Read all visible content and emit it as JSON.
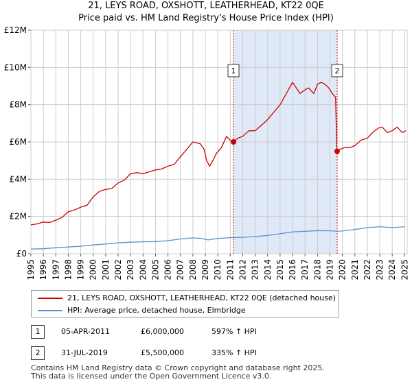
{
  "title_line1": "21, LEYS ROAD, OXSHOTT, LEATHERHEAD, KT22 0QE",
  "title_line2": "Price paid vs. HM Land Registry's House Price Index (HPI)",
  "colors": {
    "property": "#cc0000",
    "hpi": "#5b8fcf",
    "shade": "#dfe9f7",
    "marker_line": "#cc0000"
  },
  "chart_data": {
    "type": "line",
    "x_ticks": [
      "1995",
      "1996",
      "1997",
      "1998",
      "1999",
      "2000",
      "2001",
      "2002",
      "2003",
      "2004",
      "2005",
      "2006",
      "2007",
      "2008",
      "2009",
      "2010",
      "2011",
      "2012",
      "2013",
      "2014",
      "2015",
      "2016",
      "2017",
      "2018",
      "2019",
      "2020",
      "2021",
      "2022",
      "2023",
      "2024",
      "2025"
    ],
    "y_tick_labels": [
      "£0",
      "£2M",
      "£4M",
      "£6M",
      "£8M",
      "£10M",
      "£12M"
    ],
    "y_tick_values": [
      0,
      2000000,
      4000000,
      6000000,
      8000000,
      10000000,
      12000000
    ],
    "xlim": [
      1995,
      2025.2
    ],
    "ylim": [
      0,
      12000000
    ],
    "series": [
      {
        "name": "21, LEYS ROAD, OXSHOTT, LEATHERHEAD, KT22 0QE (detached house)",
        "color": "#cc0000",
        "points": [
          [
            1995.0,
            1.55
          ],
          [
            1995.5,
            1.6
          ],
          [
            1996.0,
            1.7
          ],
          [
            1996.5,
            1.68
          ],
          [
            1997.0,
            1.8
          ],
          [
            1997.5,
            1.95
          ],
          [
            1998.0,
            2.25
          ],
          [
            1998.5,
            2.35
          ],
          [
            1999.0,
            2.5
          ],
          [
            1999.5,
            2.6
          ],
          [
            2000.0,
            3.05
          ],
          [
            2000.5,
            3.35
          ],
          [
            2001.0,
            3.45
          ],
          [
            2001.5,
            3.5
          ],
          [
            2002.0,
            3.8
          ],
          [
            2002.5,
            3.95
          ],
          [
            2003.0,
            4.3
          ],
          [
            2003.5,
            4.35
          ],
          [
            2004.0,
            4.3
          ],
          [
            2004.5,
            4.4
          ],
          [
            2005.0,
            4.5
          ],
          [
            2005.5,
            4.55
          ],
          [
            2006.0,
            4.7
          ],
          [
            2006.5,
            4.8
          ],
          [
            2007.0,
            5.2
          ],
          [
            2007.5,
            5.6
          ],
          [
            2008.0,
            6.0
          ],
          [
            2008.3,
            5.95
          ],
          [
            2008.6,
            5.9
          ],
          [
            2008.9,
            5.6
          ],
          [
            2009.1,
            5.0
          ],
          [
            2009.35,
            4.7
          ],
          [
            2009.6,
            5.0
          ],
          [
            2009.9,
            5.4
          ],
          [
            2010.3,
            5.7
          ],
          [
            2010.7,
            6.3
          ],
          [
            2011.0,
            6.1
          ],
          [
            2011.26,
            6.0
          ],
          [
            2011.6,
            6.2
          ],
          [
            2012.0,
            6.3
          ],
          [
            2012.5,
            6.6
          ],
          [
            2013.0,
            6.6
          ],
          [
            2013.5,
            6.9
          ],
          [
            2014.0,
            7.2
          ],
          [
            2014.5,
            7.6
          ],
          [
            2015.0,
            8.0
          ],
          [
            2015.5,
            8.6
          ],
          [
            2016.0,
            9.2
          ],
          [
            2016.3,
            8.9
          ],
          [
            2016.6,
            8.6
          ],
          [
            2017.0,
            8.8
          ],
          [
            2017.3,
            8.9
          ],
          [
            2017.7,
            8.6
          ],
          [
            2018.0,
            9.1
          ],
          [
            2018.3,
            9.2
          ],
          [
            2018.6,
            9.1
          ],
          [
            2018.9,
            8.9
          ],
          [
            2019.2,
            8.6
          ],
          [
            2019.45,
            8.4
          ],
          [
            2019.55,
            5.7
          ],
          [
            2019.58,
            5.5
          ],
          [
            2019.8,
            5.6
          ],
          [
            2020.2,
            5.7
          ],
          [
            2020.6,
            5.7
          ],
          [
            2021.0,
            5.8
          ],
          [
            2021.5,
            6.1
          ],
          [
            2022.0,
            6.2
          ],
          [
            2022.5,
            6.55
          ],
          [
            2022.9,
            6.75
          ],
          [
            2023.2,
            6.8
          ],
          [
            2023.6,
            6.5
          ],
          [
            2024.0,
            6.6
          ],
          [
            2024.4,
            6.8
          ],
          [
            2024.8,
            6.5
          ],
          [
            2025.1,
            6.6
          ]
        ]
      },
      {
        "name": "HPI: Average price, detached house, Elmbridge",
        "color": "#5b8fcf",
        "points": [
          [
            1995.0,
            0.25
          ],
          [
            1996.0,
            0.27
          ],
          [
            1997.0,
            0.32
          ],
          [
            1998.0,
            0.36
          ],
          [
            1999.0,
            0.4
          ],
          [
            2000.0,
            0.47
          ],
          [
            2001.0,
            0.52
          ],
          [
            2002.0,
            0.58
          ],
          [
            2003.0,
            0.62
          ],
          [
            2004.0,
            0.64
          ],
          [
            2005.0,
            0.65
          ],
          [
            2006.0,
            0.7
          ],
          [
            2007.0,
            0.79
          ],
          [
            2008.0,
            0.85
          ],
          [
            2008.7,
            0.82
          ],
          [
            2009.2,
            0.74
          ],
          [
            2010.0,
            0.82
          ],
          [
            2011.0,
            0.86
          ],
          [
            2012.0,
            0.88
          ],
          [
            2013.0,
            0.92
          ],
          [
            2014.0,
            0.98
          ],
          [
            2015.0,
            1.07
          ],
          [
            2016.0,
            1.17
          ],
          [
            2017.0,
            1.2
          ],
          [
            2018.0,
            1.24
          ],
          [
            2019.0,
            1.23
          ],
          [
            2019.6,
            1.21
          ],
          [
            2020.0,
            1.22
          ],
          [
            2021.0,
            1.3
          ],
          [
            2022.0,
            1.4
          ],
          [
            2023.0,
            1.45
          ],
          [
            2024.0,
            1.4
          ],
          [
            2025.0,
            1.45
          ]
        ]
      }
    ],
    "y_unit_multiplier": 1000000,
    "markers": [
      {
        "label": "1",
        "x": 2011.26,
        "y": 6000000
      },
      {
        "label": "2",
        "x": 2019.58,
        "y": 5500000
      }
    ],
    "shaded_region": [
      2011.26,
      2019.58
    ]
  },
  "legend": {
    "property_label": "21, LEYS ROAD, OXSHOTT, LEATHERHEAD, KT22 0QE (detached house)",
    "hpi_label": "HPI: Average price, detached house, Elmbridge"
  },
  "transactions": [
    {
      "badge": "1",
      "date": "05-APR-2011",
      "price": "£6,000,000",
      "hpi": "597% ↑ HPI"
    },
    {
      "badge": "2",
      "date": "31-JUL-2019",
      "price": "£5,500,000",
      "hpi": "335% ↑ HPI"
    }
  ],
  "footer_line1": "Contains HM Land Registry data © Crown copyright and database right 2025.",
  "footer_line2": "This data is licensed under the Open Government Licence v3.0."
}
